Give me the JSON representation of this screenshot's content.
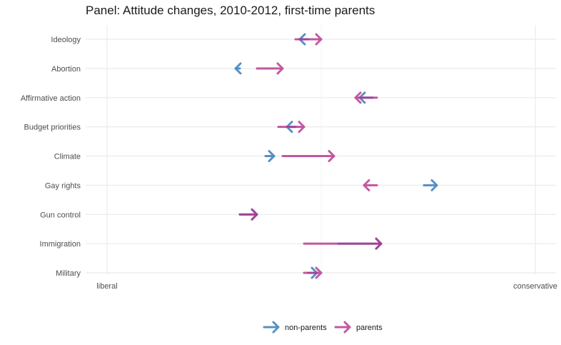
{
  "title": "Panel: Attitude changes, 2010-2012, first-time parents",
  "colors": {
    "non_parents": "#2e75b6",
    "parents": "#b5308a",
    "grid": "#ebebeb"
  },
  "chart_data": {
    "type": "arrow-dumbbell",
    "title": "Panel: Attitude changes, 2010-2012, first-time parents",
    "xlim": [
      -0.03,
      1.05
    ],
    "x_ticks": [
      {
        "value": 0,
        "label": "liberal"
      },
      {
        "value": 1,
        "label": "conservative"
      }
    ],
    "x_grid_minor": [
      0.5
    ],
    "grid": true,
    "legend_position": "bottom",
    "categories": [
      "Ideology",
      "Abortion",
      "Affirmative action",
      "Budget priorities",
      "Climate",
      "Gay rights",
      "Gun control",
      "Immigration",
      "Military"
    ],
    "series": [
      {
        "name": "non-parents",
        "start": [
          0.47,
          0.31,
          0.62,
          0.44,
          0.37,
          0.74,
          0.31,
          0.54,
          0.47
        ],
        "end": [
          0.45,
          0.3,
          0.59,
          0.42,
          0.39,
          0.77,
          0.35,
          0.64,
          0.49
        ]
      },
      {
        "name": "parents",
        "start": [
          0.44,
          0.35,
          0.63,
          0.4,
          0.41,
          0.63,
          0.31,
          0.46,
          0.46
        ],
        "end": [
          0.5,
          0.41,
          0.58,
          0.46,
          0.53,
          0.6,
          0.35,
          0.64,
          0.5
        ]
      }
    ]
  }
}
